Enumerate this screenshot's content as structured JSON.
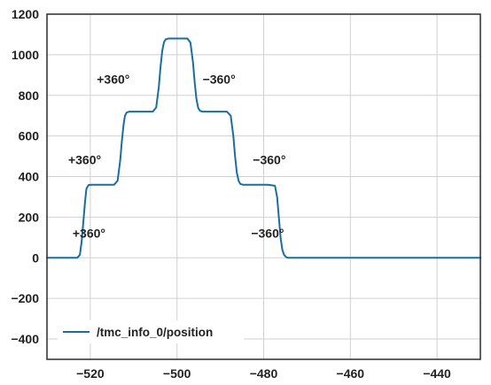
{
  "chart_data": {
    "type": "line",
    "title": "",
    "xlabel": "",
    "ylabel": "",
    "xlim": [
      -530,
      -430
    ],
    "ylim": [
      -500,
      1200
    ],
    "grid": true,
    "legend_position": "bottom-left",
    "x_ticks": [
      -520,
      -500,
      -480,
      -460,
      -440
    ],
    "y_ticks": [
      -400,
      -200,
      0,
      200,
      400,
      600,
      800,
      1000,
      1200
    ],
    "x_tick_labels": [
      "−520",
      "−500",
      "−480",
      "−460",
      "−440"
    ],
    "y_tick_labels": [
      "−400",
      "−200",
      "0",
      "200",
      "400",
      "600",
      "800",
      "1000",
      "1200"
    ],
    "series": [
      {
        "name": "/tmc_info_0/position",
        "color": "#1a6e9e",
        "x": [
          -530,
          -523,
          -522.4,
          -522,
          -521.6,
          -521.2,
          -520.9,
          -520.4,
          -519.8,
          -514.5,
          -513.7,
          -513.1,
          -512.7,
          -512.3,
          -512.0,
          -511.6,
          -511.0,
          -510.4,
          -505.6,
          -504.8,
          -504.2,
          -503.8,
          -503.4,
          -503.0,
          -502.6,
          -502.0,
          -501.4,
          -497.6,
          -496.9,
          -496.3,
          -495.9,
          -495.5,
          -495.1,
          -494.7,
          -494.1,
          -493.5,
          -488.5,
          -487.6,
          -487.0,
          -486.6,
          -486.2,
          -485.8,
          -485.4,
          -484.8,
          -484.2,
          -479.0,
          -477.4,
          -476.9,
          -476.5,
          -476.1,
          -475.7,
          -475.3,
          -474.8,
          -474.4,
          -473.8,
          -430
        ],
        "y": [
          0,
          0,
          15,
          80,
          180,
          280,
          340,
          358,
          360,
          360,
          380,
          480,
          580,
          660,
          700,
          716,
          720,
          720,
          720,
          740,
          840,
          940,
          1020,
          1062,
          1076,
          1080,
          1080,
          1080,
          1060,
          960,
          860,
          780,
          738,
          724,
          720,
          720,
          720,
          700,
          600,
          500,
          420,
          380,
          364,
          360,
          360,
          360,
          355,
          300,
          200,
          100,
          40,
          15,
          3,
          0,
          0,
          0
        ]
      }
    ],
    "annotations": [
      {
        "text": "+360°",
        "x": -514.7,
        "y": 879
      },
      {
        "text": "−360°",
        "x": -490.3,
        "y": 880
      },
      {
        "text": "+360°",
        "x": -521.3,
        "y": 483
      },
      {
        "text": "−360°",
        "x": -478.7,
        "y": 483
      },
      {
        "text": "+360°",
        "x": -520.3,
        "y": 122
      },
      {
        "text": "−360°",
        "x": -479.1,
        "y": 122
      }
    ]
  }
}
